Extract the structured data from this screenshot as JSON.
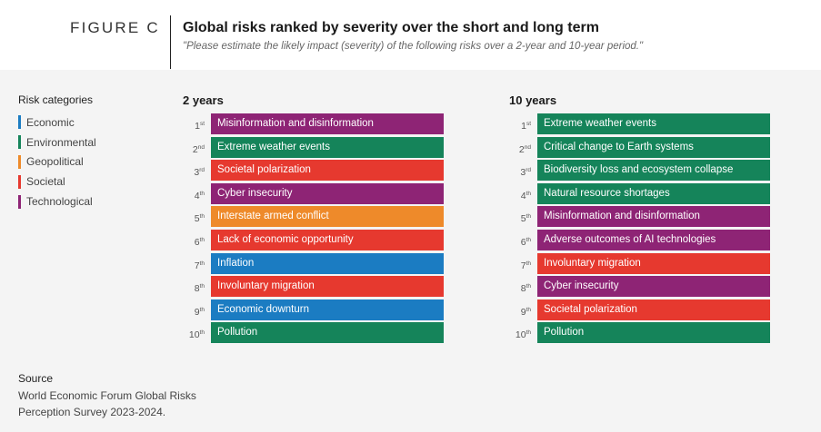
{
  "figure_label": "FIGURE C",
  "title": "Global risks ranked by severity over the short and long term",
  "subtitle": "\"Please estimate the likely impact (severity) of the following risks over a 2-year and 10-year period.\"",
  "legend": {
    "title": "Risk categories",
    "items": [
      {
        "label": "Economic",
        "color": "#1b7cc2"
      },
      {
        "label": "Environmental",
        "color": "#15845a"
      },
      {
        "label": "Geopolitical",
        "color": "#ee8a2a"
      },
      {
        "label": "Societal",
        "color": "#e6392f"
      },
      {
        "label": "Technological",
        "color": "#8e2475"
      }
    ]
  },
  "chart_data": [
    {
      "type": "table",
      "title": "2 years",
      "rows": [
        {
          "rank": "1",
          "suffix": "st",
          "label": "Misinformation and disinformation",
          "category": "Technological",
          "color": "#8e2475"
        },
        {
          "rank": "2",
          "suffix": "nd",
          "label": "Extreme weather events",
          "category": "Environmental",
          "color": "#15845a"
        },
        {
          "rank": "3",
          "suffix": "rd",
          "label": "Societal polarization",
          "category": "Societal",
          "color": "#e6392f"
        },
        {
          "rank": "4",
          "suffix": "th",
          "label": "Cyber insecurity",
          "category": "Technological",
          "color": "#8e2475"
        },
        {
          "rank": "5",
          "suffix": "th",
          "label": "Interstate armed conflict",
          "category": "Geopolitical",
          "color": "#ee8a2a"
        },
        {
          "rank": "6",
          "suffix": "th",
          "label": "Lack of economic opportunity",
          "category": "Societal",
          "color": "#e6392f"
        },
        {
          "rank": "7",
          "suffix": "th",
          "label": "Inflation",
          "category": "Economic",
          "color": "#1b7cc2"
        },
        {
          "rank": "8",
          "suffix": "th",
          "label": "Involuntary migration",
          "category": "Societal",
          "color": "#e6392f"
        },
        {
          "rank": "9",
          "suffix": "th",
          "label": "Economic downturn",
          "category": "Economic",
          "color": "#1b7cc2"
        },
        {
          "rank": "10",
          "suffix": "th",
          "label": "Pollution",
          "category": "Environmental",
          "color": "#15845a"
        }
      ]
    },
    {
      "type": "table",
      "title": "10 years",
      "rows": [
        {
          "rank": "1",
          "suffix": "st",
          "label": "Extreme weather events",
          "category": "Environmental",
          "color": "#15845a"
        },
        {
          "rank": "2",
          "suffix": "nd",
          "label": "Critical change to Earth systems",
          "category": "Environmental",
          "color": "#15845a"
        },
        {
          "rank": "3",
          "suffix": "rd",
          "label": "Biodiversity loss and ecosystem collapse",
          "category": "Environmental",
          "color": "#15845a"
        },
        {
          "rank": "4",
          "suffix": "th",
          "label": "Natural resource shortages",
          "category": "Environmental",
          "color": "#15845a"
        },
        {
          "rank": "5",
          "suffix": "th",
          "label": "Misinformation and disinformation",
          "category": "Technological",
          "color": "#8e2475"
        },
        {
          "rank": "6",
          "suffix": "th",
          "label": "Adverse outcomes of AI technologies",
          "category": "Technological",
          "color": "#8e2475"
        },
        {
          "rank": "7",
          "suffix": "th",
          "label": "Involuntary migration",
          "category": "Societal",
          "color": "#e6392f"
        },
        {
          "rank": "8",
          "suffix": "th",
          "label": "Cyber insecurity",
          "category": "Technological",
          "color": "#8e2475"
        },
        {
          "rank": "9",
          "suffix": "th",
          "label": "Societal polarization",
          "category": "Societal",
          "color": "#e6392f"
        },
        {
          "rank": "10",
          "suffix": "th",
          "label": "Pollution",
          "category": "Environmental",
          "color": "#15845a"
        }
      ]
    }
  ],
  "source": {
    "title": "Source",
    "line1": "World Economic Forum Global Risks",
    "line2": "Perception Survey 2023-2024."
  }
}
